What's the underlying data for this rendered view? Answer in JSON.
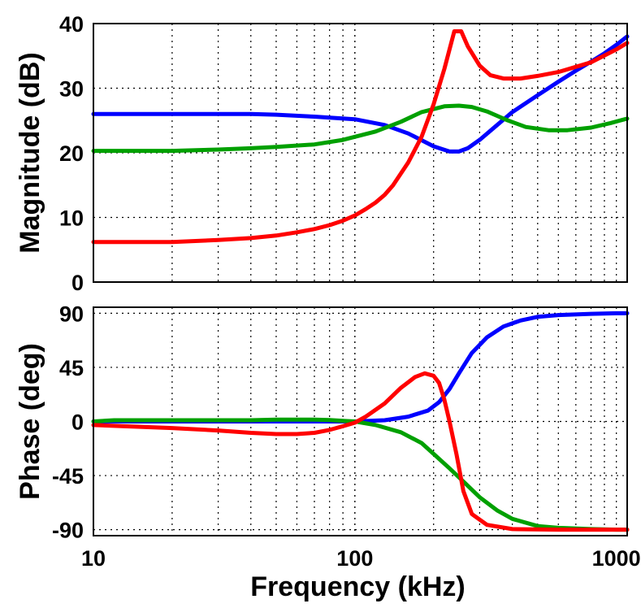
{
  "chart_data": [
    {
      "type": "line",
      "name": "magnitude",
      "xscale": "log",
      "xlim": [
        10,
        1100
      ],
      "ylim": [
        0,
        40
      ],
      "yticks": [
        0,
        10,
        20,
        30,
        40
      ],
      "ytick_labels": [
        "0",
        "10",
        "20",
        "30",
        "40"
      ],
      "xlabel": "",
      "ylabel": "Magnitude (dB)",
      "grid": true,
      "series": [
        {
          "name": "blue",
          "color": "#0000ff",
          "x": [
            10,
            20,
            30,
            40,
            50,
            70,
            100,
            130,
            160,
            200,
            230,
            250,
            270,
            300,
            350,
            400,
            500,
            600,
            700,
            800,
            900,
            1000,
            1100
          ],
          "y": [
            26,
            26,
            26,
            26,
            25.9,
            25.6,
            25.2,
            24.3,
            23.0,
            21.0,
            20.2,
            20.2,
            20.7,
            22.0,
            24.3,
            26.3,
            28.9,
            31.0,
            32.7,
            34.1,
            35.4,
            36.7,
            38
          ]
        },
        {
          "name": "green",
          "color": "#00a000",
          "x": [
            10,
            20,
            30,
            40,
            50,
            70,
            90,
            120,
            150,
            180,
            220,
            250,
            280,
            320,
            380,
            450,
            550,
            650,
            800,
            950,
            1100
          ],
          "y": [
            20.3,
            20.3,
            20.5,
            20.7,
            20.9,
            21.3,
            22.0,
            23.3,
            24.8,
            26.3,
            27.2,
            27.3,
            27.1,
            26.4,
            25.1,
            24.0,
            23.5,
            23.5,
            23.9,
            24.6,
            25.3
          ]
        },
        {
          "name": "red",
          "color": "#ff0000",
          "x": [
            10,
            20,
            30,
            40,
            50,
            60,
            70,
            80,
            90,
            100,
            110,
            120,
            130,
            140,
            160,
            180,
            200,
            220,
            240,
            255,
            270,
            300,
            330,
            370,
            430,
            500,
            600,
            800,
            1000,
            1100
          ],
          "y": [
            6.2,
            6.2,
            6.5,
            6.8,
            7.2,
            7.7,
            8.2,
            8.8,
            9.5,
            10.3,
            11.3,
            12.3,
            13.5,
            15.0,
            18.5,
            22.5,
            27.5,
            33.0,
            38.8,
            38.8,
            36.5,
            33.5,
            32.0,
            31.5,
            31.5,
            31.9,
            32.5,
            34.0,
            36.0,
            37.0
          ]
        }
      ]
    },
    {
      "type": "line",
      "name": "phase",
      "xscale": "log",
      "xlim": [
        10,
        1100
      ],
      "ylim": [
        -95,
        95
      ],
      "yticks": [
        -90,
        -45,
        0,
        45,
        90
      ],
      "ytick_labels": [
        "-90",
        "-45",
        "0",
        "45",
        "90"
      ],
      "xticks": [
        10,
        100,
        1000
      ],
      "xtick_labels": [
        "10",
        "100",
        "1000"
      ],
      "xlabel": "Frequency  (kHz)",
      "ylabel": "Phase (deg)",
      "grid": true,
      "series": [
        {
          "name": "blue",
          "color": "#0000ff",
          "x": [
            10,
            30,
            50,
            70,
            100,
            130,
            160,
            190,
            210,
            230,
            250,
            280,
            320,
            370,
            430,
            500,
            600,
            800,
            1000,
            1100
          ],
          "y": [
            0,
            0,
            0,
            0,
            0,
            1,
            4,
            9,
            16,
            27,
            40,
            57,
            70,
            79,
            84,
            87,
            88.5,
            89.5,
            90,
            90
          ]
        },
        {
          "name": "green",
          "color": "#00a000",
          "x": [
            10,
            12,
            20,
            30,
            40,
            50,
            60,
            70,
            80,
            90,
            100,
            120,
            150,
            180,
            200,
            230,
            260,
            300,
            350,
            400,
            500,
            600,
            800,
            1000,
            1100
          ],
          "y": [
            0,
            1,
            1,
            1,
            1,
            1.5,
            1.5,
            1.5,
            1.2,
            0.5,
            0,
            -3,
            -9,
            -18,
            -27,
            -39,
            -50,
            -63,
            -74,
            -81,
            -87,
            -88.5,
            -89.5,
            -90,
            -90
          ]
        },
        {
          "name": "red",
          "color": "#ff0000",
          "x": [
            10,
            20,
            30,
            40,
            50,
            60,
            70,
            80,
            90,
            100,
            110,
            130,
            150,
            170,
            185,
            200,
            210,
            220,
            230,
            245,
            260,
            280,
            320,
            400,
            600,
            800,
            1100
          ],
          "y": [
            -3,
            -5.5,
            -7.5,
            -9.5,
            -10.5,
            -10.5,
            -9.5,
            -7,
            -4,
            -1,
            4,
            15,
            28,
            37,
            40,
            38,
            32,
            18,
            0,
            -28,
            -58,
            -77,
            -86,
            -89.5,
            -90,
            -90,
            -90
          ]
        }
      ]
    }
  ]
}
